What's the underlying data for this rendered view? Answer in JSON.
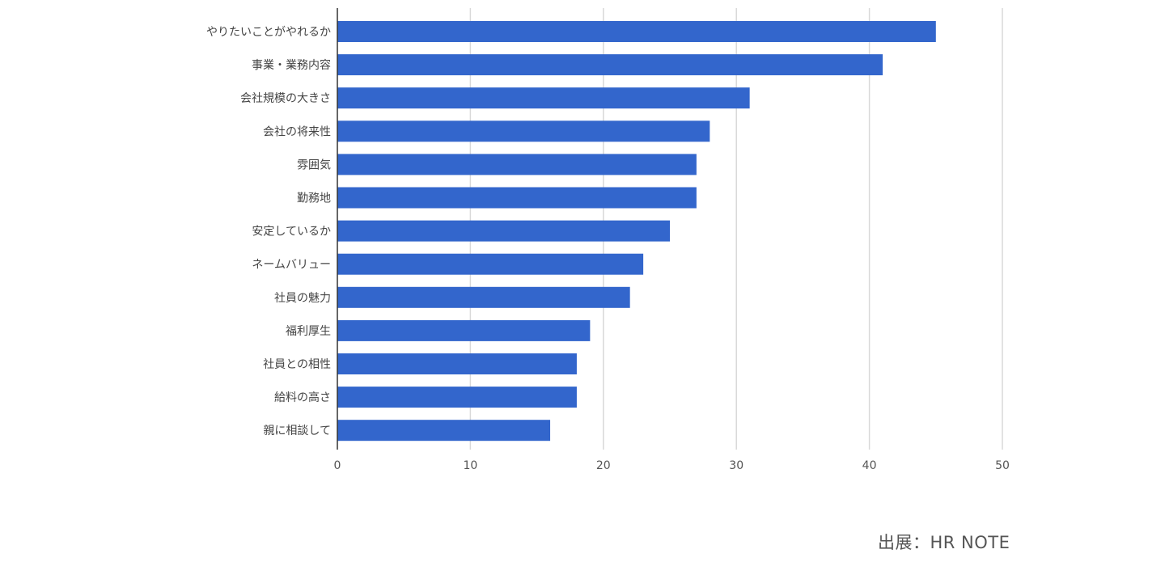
{
  "chart_data": {
    "type": "bar",
    "orientation": "horizontal",
    "categories": [
      "やりたいことがやれるか",
      "事業・業務内容",
      "会社規模の大きさ",
      "会社の将来性",
      "雰囲気",
      "勤務地",
      "安定しているか",
      "ネームバリュー",
      "社員の魅力",
      "福利厚生",
      "社員との相性",
      "給料の高さ",
      "親に相談して"
    ],
    "values": [
      45,
      41,
      31,
      28,
      27,
      27,
      25,
      23,
      22,
      19,
      18,
      18,
      16
    ],
    "xlim": [
      0,
      50
    ],
    "xticks": [
      0,
      10,
      20,
      30,
      40,
      50
    ],
    "grid": true,
    "bar_color": "#3366cc",
    "title": "",
    "xlabel": "",
    "ylabel": ""
  },
  "source": "出展：HR NOTE"
}
